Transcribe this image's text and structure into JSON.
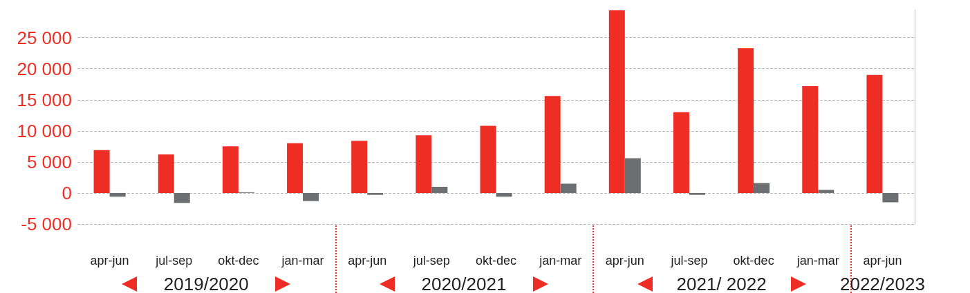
{
  "chart_data": {
    "type": "bar",
    "categories": [
      "apr-jun",
      "jul-sep",
      "okt-dec",
      "jan-mar",
      "apr-jun",
      "jul-sep",
      "okt-dec",
      "jan-mar",
      "apr-jun",
      "jul-sep",
      "okt-dec",
      "jan-mar",
      "apr-jun"
    ],
    "series": [
      {
        "color": "#ee2e24",
        "values": [
          6900,
          6200,
          7500,
          8000,
          8400,
          9300,
          10800,
          15600,
          29400,
          13000,
          23300,
          17200,
          19000
        ]
      },
      {
        "color": "#6d6e71",
        "values": [
          -600,
          -1600,
          100,
          -1300,
          -300,
          1000,
          -600,
          1500,
          5600,
          -300,
          1600,
          500,
          -1500
        ]
      }
    ],
    "ylim": [
      -5000,
      29400
    ],
    "yticks": [
      {
        "value": -5000,
        "label": "-5 000"
      },
      0,
      {
        "value": 5000,
        "label": "5 000"
      },
      {
        "value": 10000,
        "label": "10 000"
      },
      {
        "value": 15000,
        "label": "15 000"
      },
      {
        "value": 20000,
        "label": "20 000"
      },
      {
        "value": 25000,
        "label": "25 000"
      }
    ],
    "grid": "y",
    "annotations": [
      "2019/2020",
      "2020/2021",
      "2021/ 2022",
      "2022/2023"
    ]
  }
}
